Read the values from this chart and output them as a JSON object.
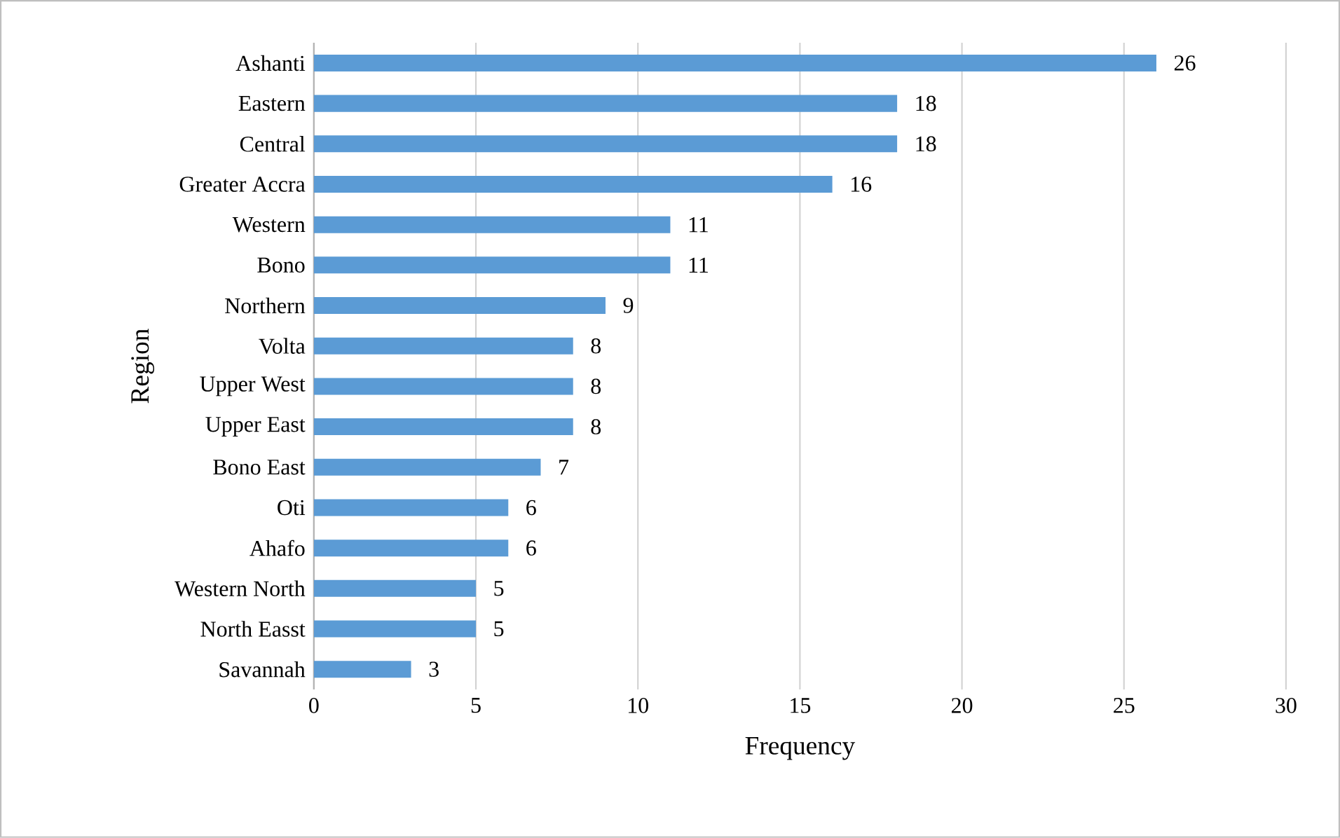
{
  "chart_data": {
    "type": "bar",
    "orientation": "horizontal",
    "xlabel": "Frequency",
    "ylabel": "Region",
    "categories": [
      "Ashanti",
      "Eastern",
      "Central",
      "Greater Accra",
      "Western",
      "Bono",
      "Northern",
      "Volta",
      "Upper West",
      "Upper East",
      "Bono East",
      "Oti",
      "Ahafo",
      "Western North",
      "North Easst",
      "Savannah"
    ],
    "values": [
      26,
      18,
      18,
      16,
      11,
      11,
      9,
      8,
      8,
      8,
      7,
      6,
      6,
      5,
      5,
      3
    ],
    "color": "#5b9bd5",
    "xlim": [
      0,
      30
    ],
    "xticks": [
      0,
      5,
      10,
      15,
      20,
      25,
      30
    ],
    "grid": "x",
    "data_labels": true
  }
}
